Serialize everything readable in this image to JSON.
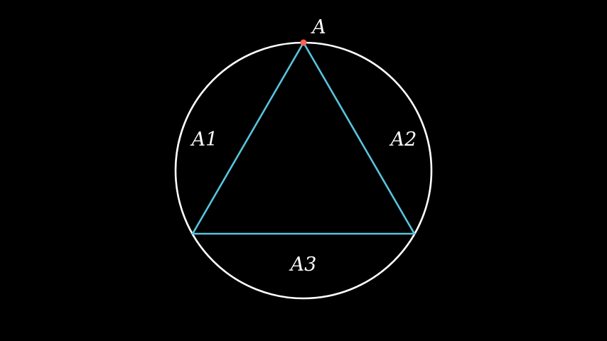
{
  "colors": {
    "background": "#000000",
    "circle": "#ffffff",
    "triangle": "#58c4dd",
    "point": "#fc6255",
    "text": "#ffffff"
  },
  "labels": {
    "vertex": "A",
    "arc_left": "A1",
    "arc_right": "A2",
    "arc_bottom": "A3"
  }
}
